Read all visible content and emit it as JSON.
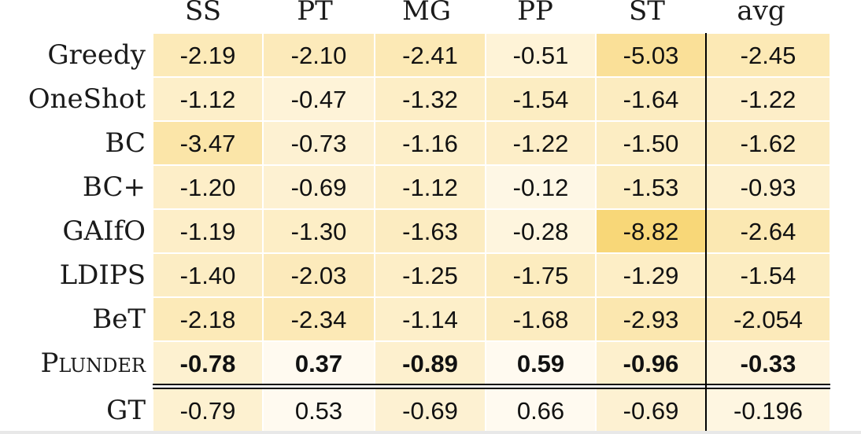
{
  "chart_data": {
    "type": "table",
    "columns": [
      "SS",
      "PT",
      "MG",
      "PP",
      "ST",
      "avg"
    ],
    "rows": [
      {
        "label": "Greedy",
        "values": [
          "-2.19",
          "-2.10",
          "-2.41",
          "-0.51",
          "-5.03",
          "-2.45"
        ],
        "bold": false,
        "smallcaps": false
      },
      {
        "label": "OneShot",
        "values": [
          "-1.12",
          "-0.47",
          "-1.32",
          "-1.54",
          "-1.64",
          "-1.22"
        ],
        "bold": false,
        "smallcaps": false
      },
      {
        "label": "BC",
        "values": [
          "-3.47",
          "-0.73",
          "-1.16",
          "-1.22",
          "-1.50",
          "-1.62"
        ],
        "bold": false,
        "smallcaps": false
      },
      {
        "label": "BC+",
        "values": [
          "-1.20",
          "-0.69",
          "-1.12",
          "-0.12",
          "-1.53",
          "-0.93"
        ],
        "bold": false,
        "smallcaps": false
      },
      {
        "label": "GAIfO",
        "values": [
          "-1.19",
          "-1.30",
          "-1.63",
          "-0.28",
          "-8.82",
          "-2.64"
        ],
        "bold": false,
        "smallcaps": false
      },
      {
        "label": "LDIPS",
        "values": [
          "-1.40",
          "-2.03",
          "-1.25",
          "-1.75",
          "-1.29",
          "-1.54"
        ],
        "bold": false,
        "smallcaps": false
      },
      {
        "label": "BeT",
        "values": [
          "-2.18",
          "-2.34",
          "-1.14",
          "-1.68",
          "-2.93",
          "-2.054"
        ],
        "bold": false,
        "smallcaps": false
      },
      {
        "label": "Plunder",
        "values": [
          "-0.78",
          "0.37",
          "-0.89",
          "0.59",
          "-0.96",
          "-0.33"
        ],
        "bold": true,
        "smallcaps": true
      },
      {
        "label": "GT",
        "values": [
          "-0.79",
          "0.53",
          "-0.69",
          "0.66",
          "-0.69",
          "-0.196"
        ],
        "bold": false,
        "smallcaps": false
      }
    ],
    "colors": {
      "min": "#fffaf0",
      "max": "#f8d778"
    }
  }
}
